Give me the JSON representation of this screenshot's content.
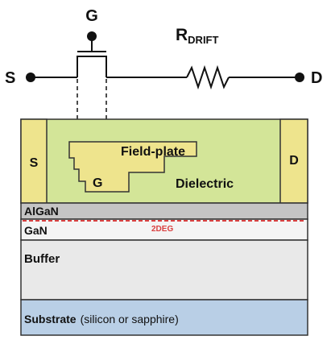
{
  "circuit": {
    "gate_label": "G",
    "source_label": "S",
    "drain_label": "D",
    "resistor_label_main": "R",
    "resistor_label_sub": "DRIFT"
  },
  "device": {
    "source_contact": "S",
    "drain_contact": "D",
    "field_plate": "Field-plate",
    "gate": "G",
    "dielectric": "Dielectric",
    "algan": "AlGaN",
    "twodeg": "2DEG",
    "gan": "GaN",
    "buffer": "Buffer",
    "substrate_main": "Substrate",
    "substrate_note": "(silicon or sapphire)"
  },
  "colors": {
    "dielectric": "#d3e598",
    "contact": "#eee48d",
    "algan": "#c4c4c4",
    "gan": "#f4f4f4",
    "buffer": "#e9e9e9",
    "substrate": "#b9cfe6",
    "twodeg": "#d94040"
  }
}
